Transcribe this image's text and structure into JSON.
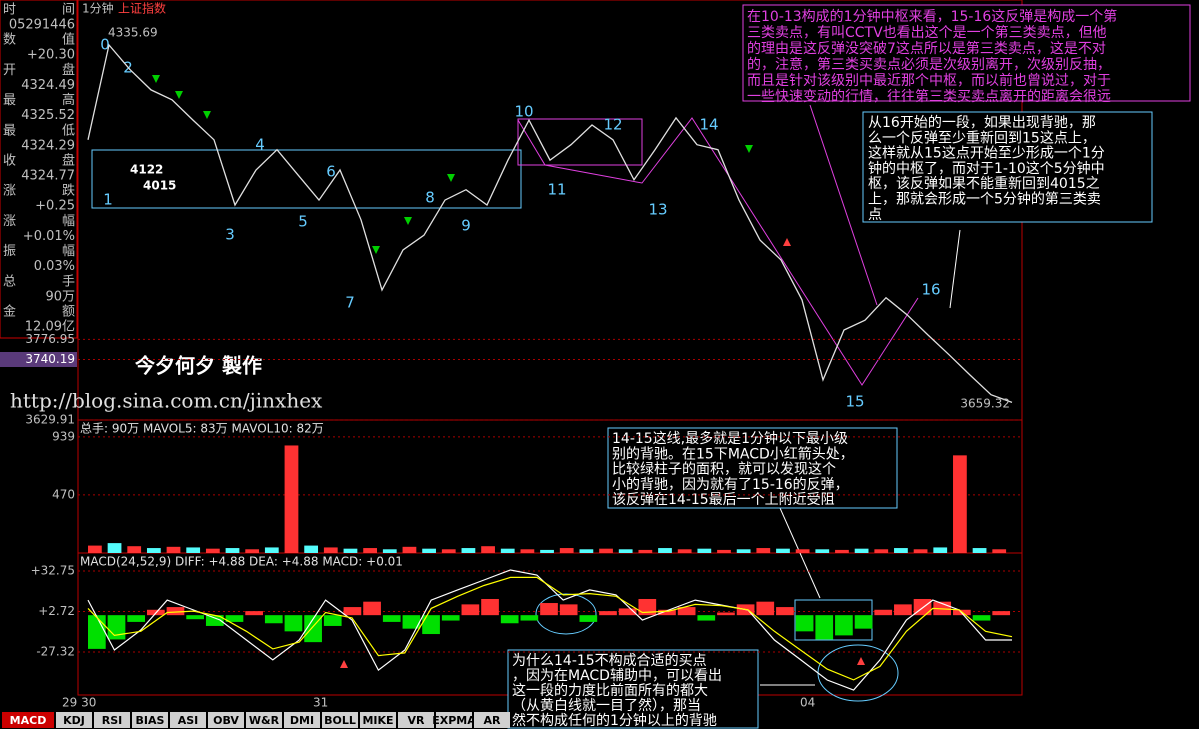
{
  "header": {
    "period": "1分钟",
    "index": "上证指数"
  },
  "sidebar": {
    "rows": [
      {
        "label": [
          "时",
          "间"
        ],
        "value": "05291446"
      },
      {
        "label": [
          "数",
          "值"
        ],
        "value": "+20.30"
      },
      {
        "label": [
          "开",
          "盘"
        ],
        "value": "4324.49"
      },
      {
        "label": [
          "最",
          "高"
        ],
        "value": "4325.52"
      },
      {
        "label": [
          "最",
          "低"
        ],
        "value": "4324.29"
      },
      {
        "label": [
          "收",
          "盘"
        ],
        "value": "4324.77"
      },
      {
        "label": [
          "涨",
          "跌"
        ],
        "value": "+0.25"
      },
      {
        "label": [
          "涨",
          "幅"
        ],
        "value": "+0.01%"
      },
      {
        "label": [
          "振",
          "幅"
        ],
        "value": "0.03%"
      },
      {
        "label": [
          "总",
          "手"
        ],
        "value": "90万"
      },
      {
        "label": [
          "金",
          "额"
        ],
        "value": "12.09亿"
      }
    ]
  },
  "watermark": {
    "author": "今夕何夕  製作",
    "url": "http://blog.sina.com.cn/jinxhex"
  },
  "zone_labels": [
    "4122",
    "4015"
  ],
  "wave_labels": [
    "0",
    "1",
    "2",
    "3",
    "4",
    "5",
    "6",
    "7",
    "8",
    "9",
    "10",
    "11",
    "12",
    "13",
    "14",
    "15",
    "16"
  ],
  "annotations": [
    {
      "lines": [
        "在10-13构成的1分钟中枢来看，15-16这反弹是构成一个第",
        "三类卖点，有叫CCTV也看出这个是一个第三类卖点，但他",
        "的理由是这反弹没突破7这点所以是第三类卖点，这是不对",
        "的，注意，第三类买卖点必须是次级别离开，次级别反抽，",
        "而且是针对该级别中最近那个中枢，而以前也曾说过，对于",
        "一些快速变动的行情，往往第三类买卖点离开的距离会很远"
      ]
    },
    {
      "lines": [
        "从16开始的一段，如果出现背驰，那",
        "么一个反弹至少重新回到15这点上，",
        "这样就从15这点开始至少形成一个1分",
        "钟的中枢了，而对于1-10这个5分钟中",
        "枢，该反弹如果不能重新回到4015之",
        "上，那就会形成一个5分钟的第三类卖",
        "点"
      ]
    },
    {
      "lines": [
        "14-15这线,最多就是1分钟以下最小级",
        "别的背驰。在15下MACD小红箭头处，",
        "比较绿柱子的面积，就可以发现这个",
        "小的背驰，因为就有了15-16的反弹，",
        "该反弹在14-15最后一个上附近受阻"
      ]
    },
    {
      "lines": [
        "为什么14-15不构成合适的买点",
        "，因为在MACD辅助中，可以看出",
        "这一段的力度比前面所有的都大",
        "（从黄白线就一目了然），那当",
        "然不构成任何的1分钟以上的背驰"
      ]
    }
  ],
  "chart_data": [
    {
      "type": "line",
      "color": "#e0e0e0",
      "ylim": [
        3629.91,
        4396
      ],
      "yticks": [
        3629.91,
        3740.19,
        3776.95
      ],
      "high": 4335.69,
      "last": 3659.32,
      "values": [
        4141,
        4314,
        4269,
        4232,
        4214,
        4177,
        4141,
        4022,
        4086,
        4123,
        4077,
        4031,
        4086,
        3995,
        3867,
        3940,
        3967,
        4031,
        4050,
        4022,
        4104,
        4177,
        4104,
        4132,
        4168,
        4141,
        4068,
        4123,
        4181,
        4132,
        4123,
        4031,
        3958,
        3922,
        3849,
        3703,
        3794,
        3812,
        3853,
        3822,
        3785,
        3749,
        3712,
        3676,
        3662
      ]
    },
    {
      "type": "bar",
      "title": "总手: 90万  MAVOL5: 83万  MAVOL10: 82万",
      "colors": [
        "#ff3232",
        "#54fcfc"
      ],
      "ylim": [
        0,
        1076
      ],
      "yticks": [
        470,
        939
      ],
      "values": [
        60,
        80,
        55,
        40,
        50,
        45,
        35,
        40,
        30,
        45,
        870,
        60,
        45,
        35,
        40,
        30,
        50,
        35,
        30,
        40,
        55,
        35,
        30,
        25,
        40,
        30,
        35,
        30,
        25,
        40,
        30,
        35,
        25,
        30,
        40,
        35,
        30,
        30,
        25,
        35,
        30,
        40,
        30,
        45,
        790,
        40,
        30
      ]
    },
    {
      "type": "macd",
      "title": "MACD(24,52,9) DIFF: +4.88 DEA: +4.88 MACD: +0.01",
      "colors": [
        "#ff3232",
        "#00e000"
      ],
      "ylim": [
        -59.2,
        46.1
      ],
      "yticks": [
        {
          "value": -27.32,
          "label": "-27.32"
        },
        {
          "value": 2.72,
          "label": "+2.72"
        },
        {
          "value": 32.75,
          "label": "+32.75"
        }
      ],
      "x_labels": [
        "29 30",
        "31",
        "04"
      ],
      "histogram": [
        -25,
        -18,
        -5,
        4,
        6,
        -3,
        -8,
        -5,
        3,
        -6,
        -12,
        -20,
        -8,
        6,
        10,
        -5,
        -10,
        -14,
        -4,
        8,
        12,
        -6,
        -4,
        9,
        8,
        -5,
        3,
        5,
        12,
        4,
        6,
        -4,
        2,
        8,
        10,
        6,
        -12,
        -18,
        -15,
        -10,
        4,
        8,
        12,
        10,
        4,
        -4,
        3
      ],
      "series": [
        {
          "color": "#ffffff",
          "values": [
            11.2,
            -25.8,
            -11.0,
            11.2,
            3.8,
            -3.6,
            -18.4,
            -33.2,
            -18.4,
            11.2,
            -3.6,
            -40.7,
            -25.8,
            11.2,
            18.7,
            26.1,
            33.5,
            29.8,
            11.2,
            18.7,
            15.0,
            -3.6,
            3.8,
            11.2,
            7.5,
            3.8,
            -18.4,
            -33.2,
            -48.1,
            -55.5,
            -33.2,
            -3.6,
            11.2,
            3.8,
            -18.4,
            -18.4
          ]
        },
        {
          "color": "#ffff00",
          "values": [
            5,
            -15,
            -12,
            2,
            3,
            -1,
            -12,
            -25,
            -20,
            2,
            -2,
            -30,
            -28,
            5,
            14,
            22,
            28,
            28,
            15,
            16,
            14,
            2,
            3,
            8,
            7,
            4,
            -12,
            -26,
            -40,
            -48,
            -38,
            -12,
            5,
            4,
            -12,
            -16
          ]
        }
      ]
    }
  ],
  "tabs": [
    "MACD",
    "KDJ",
    "RSI",
    "BIAS",
    "ASI",
    "OBV",
    "W&R",
    "DMI",
    "BOLL",
    "MIKE",
    "VR",
    "EXPMA",
    "AR"
  ]
}
